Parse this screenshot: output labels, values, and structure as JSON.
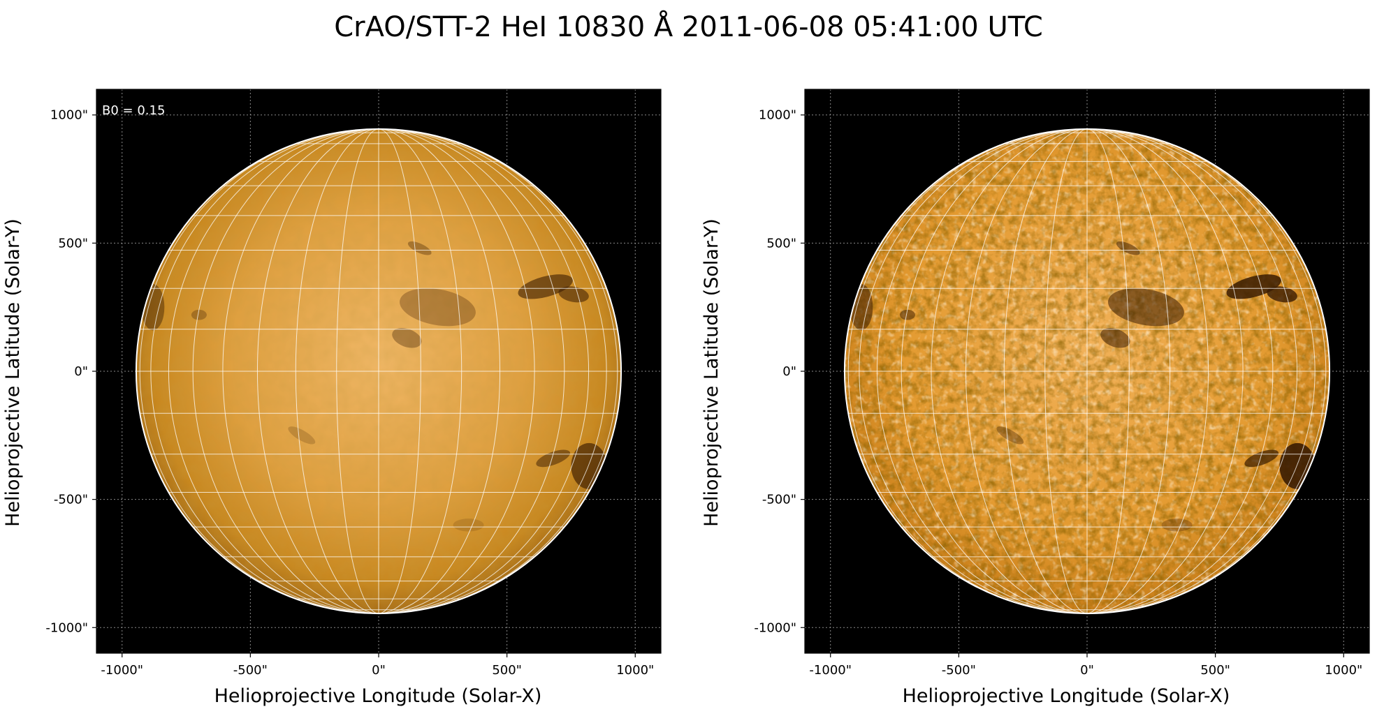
{
  "figure": {
    "title": "CrAO/STT-2 HeI 10830 Å 2011-06-08 05:41:00 UTC"
  },
  "colors": {
    "sky": "#000000",
    "disk_light": "#f0b060",
    "disk_mid": "#d08a1e",
    "disk_dark": "#7a4a10",
    "limb_line": "#ffffff",
    "grid_line": "#ffffff",
    "coord_grid": "#888888"
  },
  "panels": [
    {
      "id": "left",
      "annotation": "B0 = 0.15",
      "xlabel": "Helioprojective Longitude (Solar-X)",
      "ylabel": "Helioprojective Latitude (Solar-Y)",
      "xticks": [
        "-1000\"",
        "-500\"",
        "0\"",
        "500\"",
        "1000\""
      ],
      "yticks": [
        "1000\"",
        "500\"",
        "0\"",
        "-500\"",
        "-1000\""
      ],
      "style": "smooth"
    },
    {
      "id": "right",
      "annotation": "",
      "xlabel": "Helioprojective Longitude (Solar-X)",
      "ylabel": "Helioprojective Latitude (Solar-Y)",
      "xticks": [
        "-1000\"",
        "-500\"",
        "0\"",
        "500\"",
        "1000\""
      ],
      "yticks": [
        "1000\"",
        "500\"",
        "0\"",
        "-500\"",
        "-1000\""
      ],
      "style": "enhanced"
    }
  ],
  "axes": {
    "x_range": [
      -1100,
      1100
    ],
    "y_range": [
      -1100,
      1100
    ],
    "tick_values": [
      -1000,
      -500,
      0,
      500,
      1000
    ],
    "solar_radius_arcsec": 945,
    "b0_degrees": 0.15,
    "grid_spacing_degrees": 10
  }
}
